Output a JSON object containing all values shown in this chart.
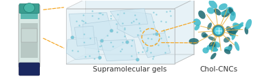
{
  "background_color": "#ffffff",
  "label_supramolecular": "Supramolecular gels",
  "label_chol": "Chol-CNCs",
  "label_fontsize": 7.5,
  "label_color": "#333333",
  "arrow_color": "#F5A623",
  "fig_width": 3.78,
  "fig_height": 1.19,
  "dpi": 100,
  "colors": {
    "vial_glass": "#b8cfc8",
    "vial_glass_edge": "#888888",
    "vial_body_bg": "#d8e8e4",
    "vial_content_top": "#4aada0",
    "vial_content_circle": "#3a9d90",
    "vial_lower": "#c0d4d0",
    "vial_bottom_cap": "#1a2860",
    "vial_bottom_cap2": "#22336a",
    "box_edge": "#999999",
    "box_face": "#deeef5",
    "sheet_edge": "#aac8d8",
    "sheet_face": "#d0e8f2",
    "sheet_dot": "#7ac8d8",
    "cage_center_outer": "#3a8fa0",
    "cage_center_inner": "#5ad8e8",
    "cage_arm": "#e8b040",
    "cage_chol_dark": "#1a6870",
    "cage_chol_light": "#3ab8c8",
    "highlight_circle": "#F5A623"
  }
}
